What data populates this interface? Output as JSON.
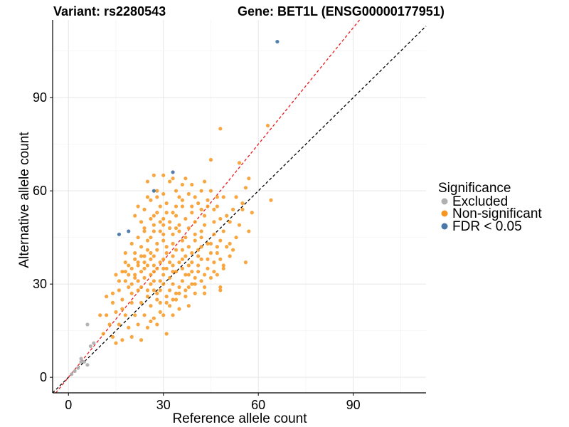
{
  "chart_data": {
    "type": "scatter",
    "title_left": "Variant: rs2280543",
    "title_right": "Gene: BET1L (ENSG00000177951)",
    "xlabel": "Reference allele count",
    "ylabel": "Alternative allele count",
    "xlim": [
      -5,
      113
    ],
    "ylim": [
      -5,
      115
    ],
    "xticks": [
      0,
      30,
      60,
      90
    ],
    "yticks": [
      0,
      30,
      60,
      90
    ],
    "grid": true,
    "legend_position": "right",
    "legend": {
      "title": "Significance",
      "entries": [
        {
          "label": "Excluded",
          "color": "#b0b0b0"
        },
        {
          "label": "Non-significant",
          "color": "#f7961e"
        },
        {
          "label": "FDR < 0.05",
          "color": "#4a78a8"
        }
      ]
    },
    "reference_lines": [
      {
        "color": "#000000",
        "style": "dashed",
        "slope": 1.0,
        "intercept": 0
      },
      {
        "color": "#e8191e",
        "style": "dashed",
        "slope": 1.25,
        "intercept": 0
      }
    ],
    "series": [
      {
        "name": "Excluded",
        "color": "#b0b0b0",
        "points": [
          [
            6,
            17
          ],
          [
            8,
            11
          ],
          [
            7,
            10
          ],
          [
            4,
            6
          ],
          [
            5,
            5
          ],
          [
            6,
            4
          ],
          [
            4,
            5
          ],
          [
            3,
            3
          ],
          [
            2,
            2
          ],
          [
            1,
            1
          ]
        ]
      },
      {
        "name": "FDR < 0.05",
        "color": "#4a78a8",
        "points": [
          [
            66,
            108
          ],
          [
            33,
            66
          ],
          [
            27,
            60
          ],
          [
            19,
            47
          ],
          [
            16,
            46
          ]
        ]
      },
      {
        "name": "Non-significant",
        "color": "#f7961e",
        "points": [
          [
            63,
            81
          ],
          [
            48,
            80
          ],
          [
            45,
            70
          ],
          [
            54,
            69
          ],
          [
            57,
            64
          ],
          [
            56,
            61
          ],
          [
            64,
            57
          ],
          [
            49,
            58
          ],
          [
            53,
            58
          ],
          [
            55,
            56
          ],
          [
            47,
            58
          ],
          [
            42,
            60
          ],
          [
            39,
            62
          ],
          [
            43,
            63
          ],
          [
            37,
            64
          ],
          [
            36,
            62
          ],
          [
            33,
            64
          ],
          [
            30,
            65
          ],
          [
            27,
            65
          ],
          [
            25,
            63
          ],
          [
            32,
            63
          ],
          [
            35,
            58
          ],
          [
            40,
            58
          ],
          [
            45,
            60
          ],
          [
            44,
            57
          ],
          [
            52,
            54
          ],
          [
            55,
            54
          ],
          [
            58,
            53
          ],
          [
            50,
            52
          ],
          [
            46,
            54
          ],
          [
            28,
            58
          ],
          [
            30,
            59
          ],
          [
            34,
            60
          ],
          [
            38,
            59
          ],
          [
            41,
            56
          ],
          [
            36,
            55
          ],
          [
            31,
            56
          ],
          [
            29,
            55
          ],
          [
            26,
            57
          ],
          [
            28,
            53
          ],
          [
            33,
            53
          ],
          [
            39,
            53
          ],
          [
            43,
            52
          ],
          [
            48,
            51
          ],
          [
            51,
            50
          ],
          [
            54,
            49
          ],
          [
            57,
            47
          ],
          [
            49,
            47
          ],
          [
            46,
            46
          ],
          [
            42,
            47
          ],
          [
            38,
            48
          ],
          [
            35,
            49
          ],
          [
            32,
            50
          ],
          [
            29,
            50
          ],
          [
            26,
            51
          ],
          [
            23,
            50
          ],
          [
            21,
            52
          ],
          [
            24,
            47
          ],
          [
            27,
            47
          ],
          [
            30,
            46
          ],
          [
            33,
            46
          ],
          [
            36,
            44
          ],
          [
            40,
            44
          ],
          [
            44,
            43
          ],
          [
            47,
            42
          ],
          [
            50,
            42
          ],
          [
            52,
            41
          ],
          [
            48,
            38
          ],
          [
            45,
            40
          ],
          [
            41,
            41
          ],
          [
            38,
            42
          ],
          [
            34,
            41
          ],
          [
            31,
            42
          ],
          [
            28,
            43
          ],
          [
            25,
            44
          ],
          [
            22,
            45
          ],
          [
            20,
            43
          ],
          [
            18,
            40
          ],
          [
            21,
            40
          ],
          [
            24,
            39
          ],
          [
            27,
            39
          ],
          [
            30,
            38
          ],
          [
            33,
            39
          ],
          [
            36,
            38
          ],
          [
            39,
            37
          ],
          [
            42,
            38
          ],
          [
            46,
            37
          ],
          [
            49,
            35
          ],
          [
            47,
            33
          ],
          [
            44,
            35
          ],
          [
            41,
            34
          ],
          [
            37,
            33
          ],
          [
            34,
            34
          ],
          [
            31,
            35
          ],
          [
            28,
            35
          ],
          [
            25,
            36
          ],
          [
            22,
            37
          ],
          [
            19,
            36
          ],
          [
            17,
            34
          ],
          [
            15,
            33
          ],
          [
            18,
            31
          ],
          [
            21,
            32
          ],
          [
            24,
            32
          ],
          [
            27,
            31
          ],
          [
            30,
            30
          ],
          [
            33,
            30
          ],
          [
            36,
            31
          ],
          [
            39,
            30
          ],
          [
            42,
            31
          ],
          [
            45,
            32
          ],
          [
            48,
            29
          ],
          [
            48,
            28
          ],
          [
            43,
            27
          ],
          [
            40,
            27
          ],
          [
            37,
            26
          ],
          [
            34,
            27
          ],
          [
            31,
            26
          ],
          [
            28,
            27
          ],
          [
            25,
            28
          ],
          [
            22,
            28
          ],
          [
            19,
            29
          ],
          [
            16,
            28
          ],
          [
            14,
            27
          ],
          [
            17,
            25
          ],
          [
            20,
            24
          ],
          [
            23,
            24
          ],
          [
            26,
            23
          ],
          [
            29,
            24
          ],
          [
            32,
            23
          ],
          [
            35,
            22
          ],
          [
            38,
            23
          ],
          [
            33,
            20
          ],
          [
            30,
            20
          ],
          [
            27,
            19
          ],
          [
            24,
            20
          ],
          [
            21,
            20
          ],
          [
            18,
            20
          ],
          [
            15,
            21
          ],
          [
            12,
            20
          ],
          [
            10,
            20
          ],
          [
            13,
            17
          ],
          [
            16,
            17
          ],
          [
            19,
            16
          ],
          [
            22,
            17
          ],
          [
            25,
            16
          ],
          [
            28,
            17
          ],
          [
            11,
            14
          ],
          [
            14,
            13
          ],
          [
            17,
            12
          ],
          [
            20,
            13
          ],
          [
            23,
            12
          ],
          [
            31,
            14
          ],
          [
            15,
            11
          ],
          [
            26,
            18
          ],
          [
            29,
            21
          ],
          [
            35,
            27
          ],
          [
            38,
            29
          ],
          [
            32,
            32
          ],
          [
            29,
            31
          ],
          [
            26,
            33
          ],
          [
            23,
            34
          ],
          [
            20,
            35
          ],
          [
            18,
            37
          ],
          [
            21,
            38
          ],
          [
            24,
            37
          ],
          [
            27,
            36
          ],
          [
            30,
            35
          ],
          [
            33,
            36
          ],
          [
            36,
            35
          ],
          [
            39,
            34
          ],
          [
            30,
            44
          ],
          [
            28,
            41
          ],
          [
            25,
            41
          ],
          [
            23,
            42
          ],
          [
            26,
            45
          ],
          [
            29,
            47
          ],
          [
            32,
            48
          ],
          [
            35,
            47
          ],
          [
            37,
            45
          ],
          [
            40,
            46
          ],
          [
            43,
            49
          ],
          [
            46,
            50
          ],
          [
            44,
            55
          ],
          [
            39,
            55
          ],
          [
            34,
            55
          ],
          [
            31,
            53
          ],
          [
            27,
            52
          ],
          [
            24,
            54
          ],
          [
            22,
            55
          ],
          [
            25,
            58
          ],
          [
            20,
            30
          ],
          [
            23,
            29
          ],
          [
            26,
            30
          ],
          [
            29,
            28
          ],
          [
            32,
            28
          ],
          [
            35,
            29
          ],
          [
            38,
            33
          ],
          [
            41,
            36
          ],
          [
            44,
            38
          ],
          [
            47,
            40
          ],
          [
            34,
            52
          ],
          [
            37,
            51
          ],
          [
            40,
            50
          ],
          [
            30,
            49
          ],
          [
            27,
            49
          ],
          [
            24,
            48
          ],
          [
            33,
            43
          ],
          [
            36,
            41
          ],
          [
            39,
            40
          ],
          [
            42,
            42
          ],
          [
            17,
            22
          ],
          [
            14,
            24
          ],
          [
            12,
            26
          ],
          [
            16,
            31
          ],
          [
            19,
            33
          ],
          [
            22,
            31
          ],
          [
            25,
            26
          ],
          [
            28,
            25
          ],
          [
            31,
            24
          ],
          [
            34,
            25
          ],
          [
            37,
            28
          ],
          [
            40,
            30
          ],
          [
            43,
            33
          ],
          [
            46,
            34
          ],
          [
            49,
            36
          ],
          [
            51,
            43
          ],
          [
            53,
            45
          ],
          [
            56,
            37
          ],
          [
            51,
            39
          ],
          [
            42,
            45
          ],
          [
            22,
            36
          ],
          [
            26,
            38
          ],
          [
            31,
            40
          ],
          [
            35,
            37
          ],
          [
            38,
            36
          ],
          [
            41,
            39
          ],
          [
            45,
            43
          ],
          [
            48,
            44
          ],
          [
            33,
            34
          ],
          [
            30,
            33
          ],
          [
            27,
            34
          ],
          [
            24,
            35
          ],
          [
            21,
            33
          ],
          [
            18,
            34
          ],
          [
            28,
            60
          ],
          [
            36,
            57
          ],
          [
            42,
            54
          ],
          [
            47,
            55
          ],
          [
            30,
            51
          ],
          [
            34,
            48
          ],
          [
            26,
            40
          ],
          [
            32,
            37
          ],
          [
            37,
            39
          ],
          [
            23,
            39
          ],
          [
            29,
            37
          ],
          [
            40,
            32
          ],
          [
            43,
            29
          ],
          [
            20,
            27
          ],
          [
            27,
            28
          ],
          [
            33,
            25
          ]
        ]
      }
    ]
  }
}
